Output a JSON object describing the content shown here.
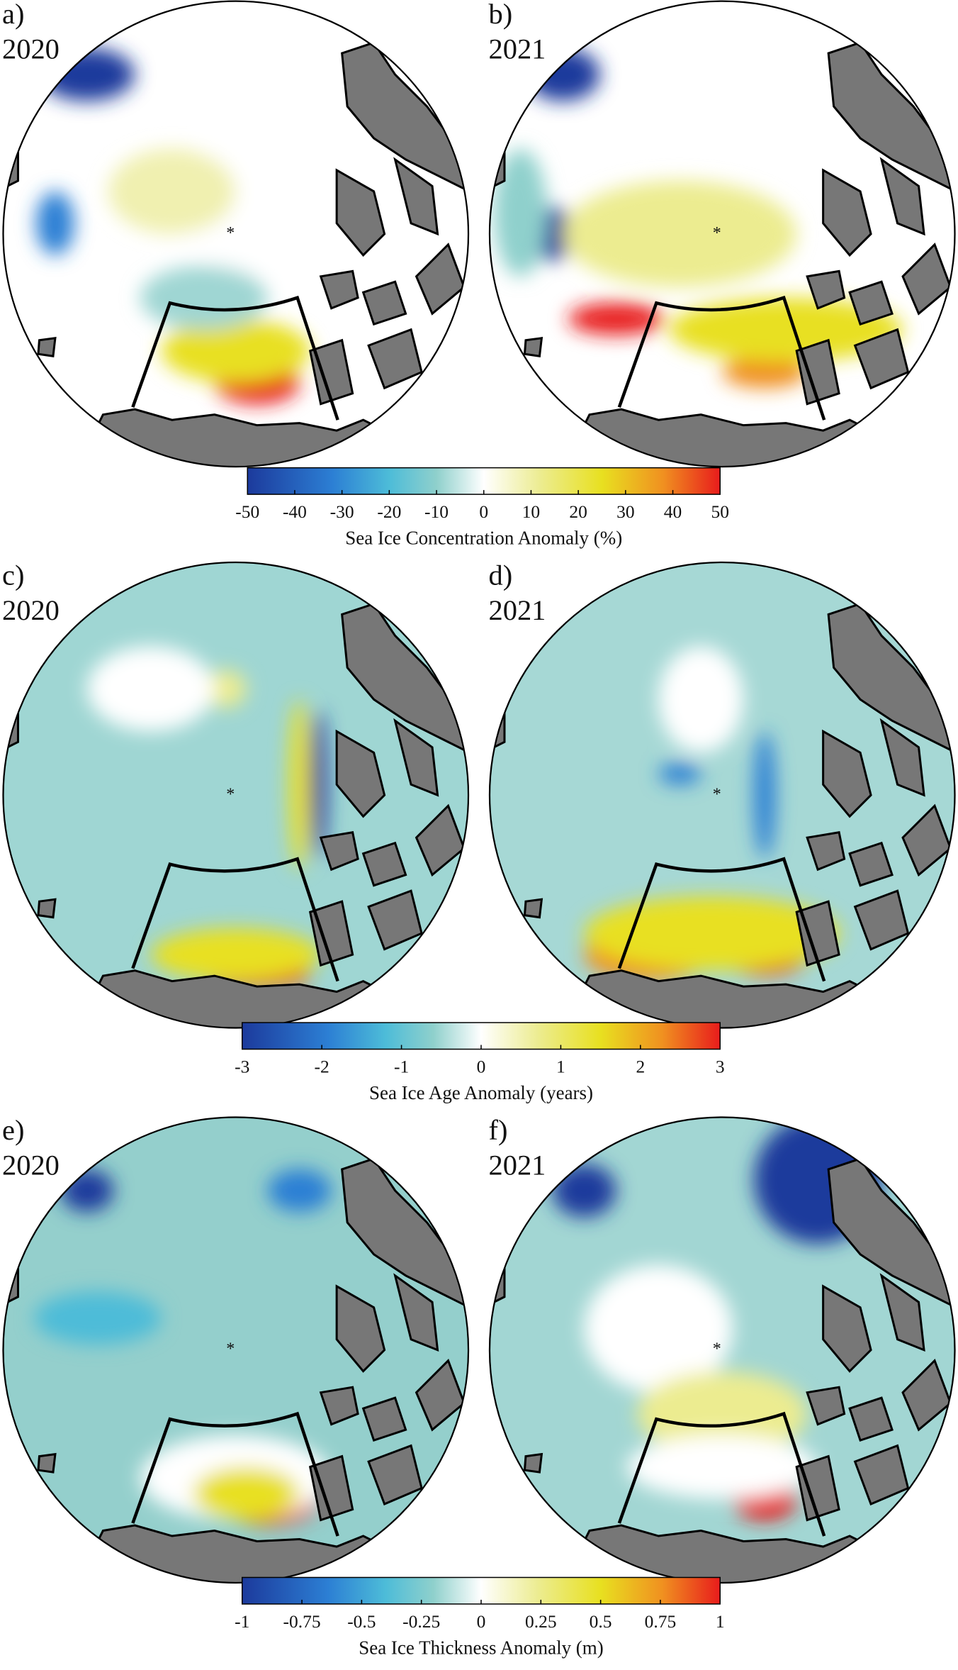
{
  "panels": [
    {
      "label": "a)",
      "year": "2020"
    },
    {
      "label": "b)",
      "year": "2021"
    },
    {
      "label": "c)",
      "year": "2020"
    },
    {
      "label": "d)",
      "year": "2021"
    },
    {
      "label": "e)",
      "year": "2020"
    },
    {
      "label": "f)",
      "year": "2021"
    }
  ],
  "colorbars": [
    {
      "title": "Sea Ice Concentration Anomaly (%)",
      "range": [
        -50,
        50
      ],
      "ticks": [
        -50,
        -40,
        -30,
        -20,
        -10,
        0,
        10,
        20,
        30,
        40,
        50
      ]
    },
    {
      "title": "Sea Ice Age Anomaly (years)",
      "range": [
        -3,
        3
      ],
      "ticks": [
        -3,
        -2,
        -1,
        0,
        1,
        2,
        3
      ]
    },
    {
      "title": "Sea Ice Thickness Anomaly (m)",
      "range": [
        -1,
        1
      ],
      "ticks": [
        -1,
        -0.75,
        -0.5,
        -0.25,
        0,
        0.25,
        0.5,
        0.75,
        1
      ]
    }
  ]
}
